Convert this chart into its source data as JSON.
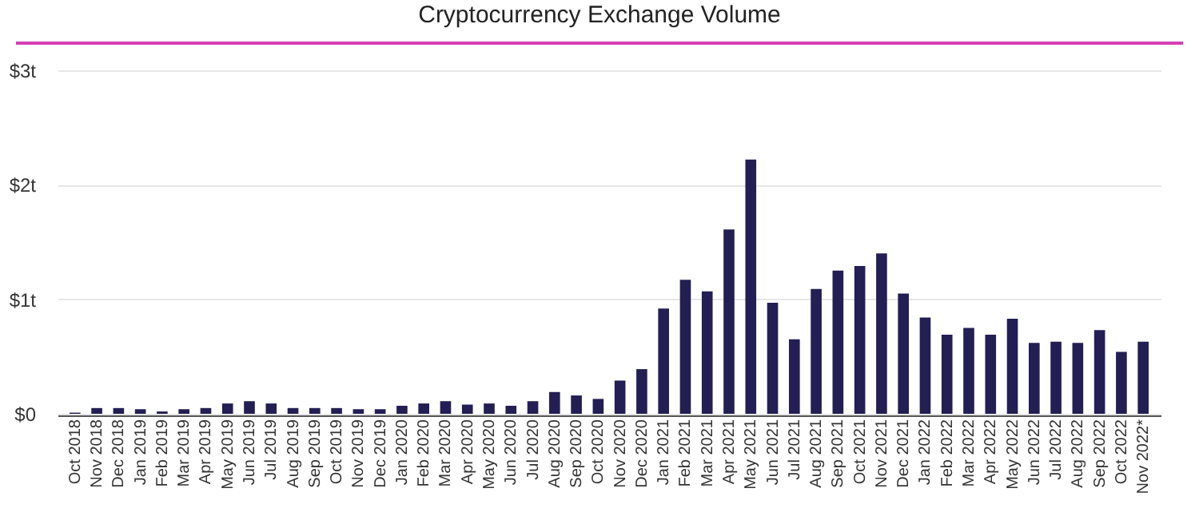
{
  "chart_data": {
    "type": "bar",
    "title": "Cryptocurrency Exchange Volume",
    "categories": [
      "Oct 2018",
      "Nov 2018",
      "Dec 2018",
      "Jan 2019",
      "Feb 2019",
      "Mar 2019",
      "Apr 2019",
      "May 2019",
      "Jun 2019",
      "Jul 2019",
      "Aug 2019",
      "Sep 2019",
      "Oct 2019",
      "Nov 2019",
      "Dec 2019",
      "Jan 2020",
      "Feb 2020",
      "Mar 2020",
      "Apr 2020",
      "May 2020",
      "Jun 2020",
      "Jul 2020",
      "Aug 2020",
      "Sep 2020",
      "Oct 2020",
      "Nov 2020",
      "Dec 2020",
      "Jan 2021",
      "Feb 2021",
      "Mar 2021",
      "Apr 2021",
      "May 2021",
      "Jun 2021",
      "Jul 2021",
      "Aug 2021",
      "Sep 2021",
      "Oct 2021",
      "Nov 2021",
      "Dec 2021",
      "Jan 2022",
      "Feb 2022",
      "Mar 2022",
      "Apr 2022",
      "May 2022",
      "Jun 2022",
      "Jul 2022",
      "Aug 2022",
      "Sep 2022",
      "Oct 2022",
      "Nov 2022*"
    ],
    "values": [
      0.01,
      0.05,
      0.05,
      0.04,
      0.02,
      0.04,
      0.05,
      0.09,
      0.11,
      0.09,
      0.05,
      0.05,
      0.05,
      0.04,
      0.04,
      0.07,
      0.09,
      0.11,
      0.08,
      0.09,
      0.07,
      0.11,
      0.19,
      0.16,
      0.13,
      0.29,
      0.39,
      0.92,
      1.17,
      1.07,
      1.61,
      2.22,
      0.97,
      0.65,
      1.09,
      1.25,
      1.29,
      1.4,
      1.05,
      0.84,
      0.69,
      0.75,
      0.69,
      0.83,
      0.62,
      0.63,
      0.62,
      0.73,
      0.54,
      0.63
    ],
    "color": "#231f54",
    "ylim": [
      0,
      3
    ],
    "yticks": [
      {
        "value": 0,
        "label": "$0"
      },
      {
        "value": 1,
        "label": "$1t"
      },
      {
        "value": 2,
        "label": "$2t"
      },
      {
        "value": 3,
        "label": "$3t"
      }
    ],
    "grid": "y",
    "legend": false
  }
}
